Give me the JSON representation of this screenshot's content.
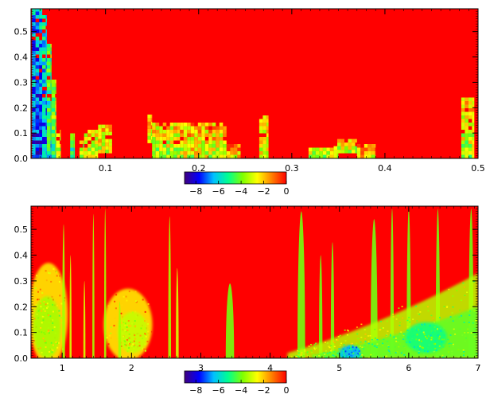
{
  "chart_data": [
    {
      "type": "heatmap",
      "title": "",
      "xlabel": "",
      "ylabel": "",
      "xlim": [
        0.02,
        0.5
      ],
      "ylim": [
        0.0,
        0.59
      ],
      "xticks": [
        "0.1",
        "0.2",
        "0.3",
        "0.4",
        "0.5"
      ],
      "xtick_values": [
        0.1,
        0.2,
        0.3,
        0.4,
        0.5
      ],
      "yticks": [
        "0.0",
        "0.1",
        "0.2",
        "0.3",
        "0.4",
        "0.5"
      ],
      "ytick_values": [
        0.0,
        0.1,
        0.2,
        0.3,
        0.4,
        0.5
      ],
      "background_value": 0,
      "colorbar": {
        "ticks": [
          "−8",
          "−6",
          "−4",
          "−2",
          "0"
        ],
        "tick_values": [
          -8,
          -6,
          -4,
          -2,
          0
        ],
        "range": [
          -9,
          0
        ],
        "colormap": [
          "#400080",
          "#0000ff",
          "#00c0ff",
          "#00ff90",
          "#80ff00",
          "#ffff00",
          "#ff8000",
          "#ff0000"
        ]
      },
      "features": [
        {
          "x0": 0.021,
          "x1": 0.032,
          "y0": 0.0,
          "y1": 0.59,
          "value": -7.5
        },
        {
          "x0": 0.032,
          "x1": 0.037,
          "y0": 0.0,
          "y1": 0.56,
          "value": -6.8
        },
        {
          "x0": 0.037,
          "x1": 0.042,
          "y0": 0.0,
          "y1": 0.45,
          "value": -5.5
        },
        {
          "x0": 0.042,
          "x1": 0.047,
          "y0": 0.0,
          "y1": 0.31,
          "value": -4.5
        },
        {
          "x0": 0.047,
          "x1": 0.052,
          "y0": 0.0,
          "y1": 0.1,
          "value": -3.5
        },
        {
          "x0": 0.062,
          "x1": 0.067,
          "y0": 0.0,
          "y1": 0.09,
          "value": -5.0
        },
        {
          "x0": 0.072,
          "x1": 0.077,
          "y0": 0.0,
          "y1": 0.07,
          "value": -4.0
        },
        {
          "x0": 0.077,
          "x1": 0.092,
          "y0": 0.0,
          "y1": 0.1,
          "value": -3.5
        },
        {
          "x0": 0.092,
          "x1": 0.107,
          "y0": 0.02,
          "y1": 0.13,
          "value": -3.0
        },
        {
          "x0": 0.145,
          "x1": 0.15,
          "y0": 0.06,
          "y1": 0.17,
          "value": -3.0
        },
        {
          "x0": 0.15,
          "x1": 0.18,
          "y0": 0.0,
          "y1": 0.14,
          "value": -3.5
        },
        {
          "x0": 0.18,
          "x1": 0.23,
          "y0": 0.0,
          "y1": 0.13,
          "value": -3.0
        },
        {
          "x0": 0.23,
          "x1": 0.245,
          "y0": 0.0,
          "y1": 0.05,
          "value": -2.5
        },
        {
          "x0": 0.265,
          "x1": 0.275,
          "y0": 0.0,
          "y1": 0.16,
          "value": -3.0
        },
        {
          "x0": 0.318,
          "x1": 0.35,
          "y0": 0.0,
          "y1": 0.04,
          "value": -3.5
        },
        {
          "x0": 0.345,
          "x1": 0.37,
          "y0": 0.02,
          "y1": 0.07,
          "value": -3.5
        },
        {
          "x0": 0.37,
          "x1": 0.39,
          "y0": 0.0,
          "y1": 0.05,
          "value": -2.5
        },
        {
          "x0": 0.482,
          "x1": 0.496,
          "y0": 0.0,
          "y1": 0.24,
          "value": -3.5
        }
      ]
    },
    {
      "type": "heatmap",
      "title": "",
      "xlabel": "",
      "ylabel": "",
      "xlim": [
        0.55,
        7.0
      ],
      "ylim": [
        0.0,
        0.59
      ],
      "xticks": [
        "1",
        "2",
        "3",
        "4",
        "5",
        "6",
        "7"
      ],
      "xtick_values": [
        1,
        2,
        3,
        4,
        5,
        6,
        7
      ],
      "yticks": [
        "0.0",
        "0.1",
        "0.2",
        "0.3",
        "0.4",
        "0.5"
      ],
      "ytick_values": [
        0.0,
        0.1,
        0.2,
        0.3,
        0.4,
        0.5
      ],
      "background_value": 0,
      "colorbar": {
        "ticks": [
          "−8",
          "−6",
          "−4",
          "−2",
          "0"
        ],
        "tick_values": [
          -8,
          -6,
          -4,
          -2,
          0
        ],
        "range": [
          -9,
          0
        ],
        "colormap": [
          "#400080",
          "#0000ff",
          "#00c0ff",
          "#00ff90",
          "#80ff00",
          "#ffff00",
          "#ff8000",
          "#ff0000"
        ]
      },
      "features": [
        {
          "kind": "blob",
          "cx": 0.8,
          "cy": 0.17,
          "rx": 0.28,
          "ry": 0.2,
          "value": -2.5
        },
        {
          "kind": "blob",
          "cx": 0.78,
          "cy": 0.12,
          "rx": 0.2,
          "ry": 0.12,
          "value": -3.5
        },
        {
          "kind": "blob",
          "cx": 1.95,
          "cy": 0.13,
          "rx": 0.35,
          "ry": 0.14,
          "value": -2.5
        },
        {
          "kind": "blob",
          "cx": 2.02,
          "cy": 0.1,
          "rx": 0.22,
          "ry": 0.08,
          "value": -3.2
        },
        {
          "kind": "spike",
          "cx": 1.02,
          "w": 0.04,
          "top": 0.52,
          "value": -3.5
        },
        {
          "kind": "spike",
          "cx": 1.12,
          "w": 0.03,
          "top": 0.4,
          "value": -3.0
        },
        {
          "kind": "spike",
          "cx": 1.32,
          "w": 0.03,
          "top": 0.3,
          "value": -3.0
        },
        {
          "kind": "spike",
          "cx": 1.45,
          "w": 0.03,
          "top": 0.56,
          "value": -3.5
        },
        {
          "kind": "spike",
          "cx": 1.62,
          "w": 0.03,
          "top": 0.58,
          "value": -3.5
        },
        {
          "kind": "spike",
          "cx": 1.83,
          "w": 0.04,
          "top": 0.22,
          "value": -3.5
        },
        {
          "kind": "spike",
          "cx": 2.55,
          "w": 0.04,
          "top": 0.55,
          "value": -3.5
        },
        {
          "kind": "spike",
          "cx": 2.66,
          "w": 0.04,
          "top": 0.35,
          "value": -3.0
        },
        {
          "kind": "spike",
          "cx": 3.42,
          "w": 0.12,
          "top": 0.29,
          "value": -4.0
        },
        {
          "kind": "spike",
          "cx": 4.45,
          "w": 0.11,
          "top": 0.57,
          "value": -4.0
        },
        {
          "kind": "spike",
          "cx": 4.73,
          "w": 0.05,
          "top": 0.4,
          "value": -4.0
        },
        {
          "kind": "spike",
          "cx": 4.9,
          "w": 0.05,
          "top": 0.45,
          "value": -4.0
        },
        {
          "kind": "spike",
          "cx": 5.5,
          "w": 0.1,
          "top": 0.54,
          "value": -4.0
        },
        {
          "kind": "spike",
          "cx": 5.76,
          "w": 0.05,
          "top": 0.58,
          "value": -4.0
        },
        {
          "kind": "spike",
          "cx": 6.0,
          "w": 0.06,
          "top": 0.58,
          "value": -4.0
        },
        {
          "kind": "spike",
          "cx": 6.42,
          "w": 0.06,
          "top": 0.58,
          "value": -4.0
        },
        {
          "kind": "spike",
          "cx": 6.9,
          "w": 0.07,
          "top": 0.58,
          "value": -4.0
        },
        {
          "kind": "wedge",
          "x0": 4.25,
          "x1": 7.0,
          "top_left": 0.02,
          "top_right": 0.33,
          "value": -3.3
        },
        {
          "kind": "wedge",
          "x0": 4.6,
          "x1": 7.0,
          "top_left": 0.01,
          "top_right": 0.2,
          "value": -4.2
        },
        {
          "kind": "blob",
          "cx": 5.15,
          "cy": 0.02,
          "rx": 0.15,
          "ry": 0.03,
          "value": -6.5
        },
        {
          "kind": "blob",
          "cx": 6.25,
          "cy": 0.08,
          "rx": 0.3,
          "ry": 0.06,
          "value": -5.0
        }
      ]
    }
  ]
}
